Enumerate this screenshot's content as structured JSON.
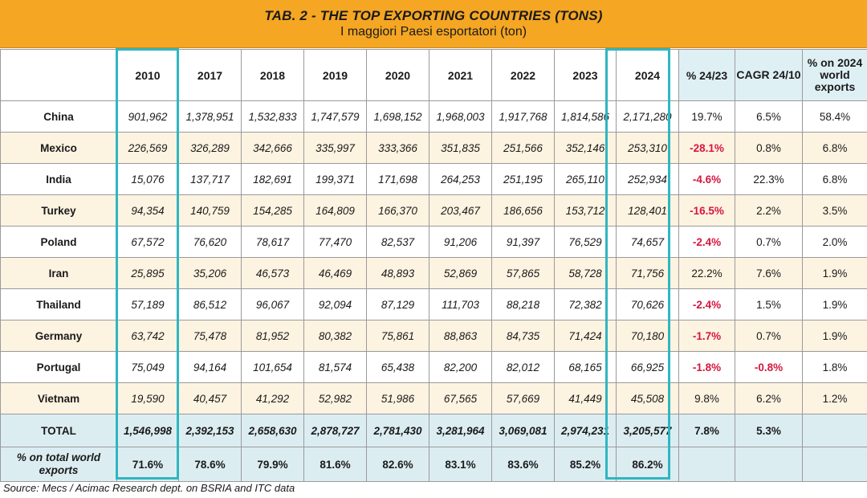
{
  "title": "TAB. 2 - THE TOP EXPORTING COUNTRIES (TONS)",
  "subtitle": "I maggiori Paesi esportatori (ton)",
  "headers": [
    "",
    "2010",
    "2017",
    "2018",
    "2019",
    "2020",
    "2021",
    "2022",
    "2023",
    "2024",
    "% 24/23",
    "CAGR 24/10",
    "% on 2024 world exports"
  ],
  "rows": [
    {
      "country": "China",
      "values": [
        "901,962",
        "1,378,951",
        "1,532,833",
        "1,747,579",
        "1,698,152",
        "1,968,003",
        "1,917,768",
        "1,814,586",
        "2,171,280"
      ],
      "pct_24_23": "19.7%",
      "cagr": "6.5%",
      "world_share": "58.4%"
    },
    {
      "country": "Mexico",
      "values": [
        "226,569",
        "326,289",
        "342,666",
        "335,997",
        "333,366",
        "351,835",
        "251,566",
        "352,146",
        "253,310"
      ],
      "pct_24_23": "-28.1%",
      "cagr": "0.8%",
      "world_share": "6.8%"
    },
    {
      "country": "India",
      "values": [
        "15,076",
        "137,717",
        "182,691",
        "199,371",
        "171,698",
        "264,253",
        "251,195",
        "265,110",
        "252,934"
      ],
      "pct_24_23": "-4.6%",
      "cagr": "22.3%",
      "world_share": "6.8%"
    },
    {
      "country": "Turkey",
      "values": [
        "94,354",
        "140,759",
        "154,285",
        "164,809",
        "166,370",
        "203,467",
        "186,656",
        "153,712",
        "128,401"
      ],
      "pct_24_23": "-16.5%",
      "cagr": "2.2%",
      "world_share": "3.5%"
    },
    {
      "country": "Poland",
      "values": [
        "67,572",
        "76,620",
        "78,617",
        "77,470",
        "82,537",
        "91,206",
        "91,397",
        "76,529",
        "74,657"
      ],
      "pct_24_23": "-2.4%",
      "cagr": "0.7%",
      "world_share": "2.0%"
    },
    {
      "country": "Iran",
      "values": [
        "25,895",
        "35,206",
        "46,573",
        "46,469",
        "48,893",
        "52,869",
        "57,865",
        "58,728",
        "71,756"
      ],
      "pct_24_23": "22.2%",
      "cagr": "7.6%",
      "world_share": "1.9%"
    },
    {
      "country": "Thailand",
      "values": [
        "57,189",
        "86,512",
        "96,067",
        "92,094",
        "87,129",
        "111,703",
        "88,218",
        "72,382",
        "70,626"
      ],
      "pct_24_23": "-2.4%",
      "cagr": "1.5%",
      "world_share": "1.9%"
    },
    {
      "country": "Germany",
      "values": [
        "63,742",
        "75,478",
        "81,952",
        "80,382",
        "75,861",
        "88,863",
        "84,735",
        "71,424",
        "70,180"
      ],
      "pct_24_23": "-1.7%",
      "cagr": "0.7%",
      "world_share": "1.9%"
    },
    {
      "country": "Portugal",
      "values": [
        "75,049",
        "94,164",
        "101,654",
        "81,574",
        "65,438",
        "82,200",
        "82,012",
        "68,165",
        "66,925"
      ],
      "pct_24_23": "-1.8%",
      "cagr": "-0.8%",
      "world_share": "1.8%"
    },
    {
      "country": "Vietnam",
      "values": [
        "19,590",
        "40,457",
        "41,292",
        "52,982",
        "51,986",
        "67,565",
        "57,669",
        "41,449",
        "45,508"
      ],
      "pct_24_23": "9.8%",
      "cagr": "6.2%",
      "world_share": "1.2%"
    }
  ],
  "total": {
    "label": "TOTAL",
    "values": [
      "1,546,998",
      "2,392,153",
      "2,658,630",
      "2,878,727",
      "2,781,430",
      "3,281,964",
      "3,069,081",
      "2,974,231",
      "3,205,577"
    ],
    "pct_24_23": "7.8%",
    "cagr": "5.3%",
    "world_share": ""
  },
  "share": {
    "label": "% on total world exports",
    "values": [
      "71.6%",
      "78.6%",
      "79.9%",
      "81.6%",
      "82.6%",
      "83.1%",
      "83.6%",
      "85.2%",
      "86.2%"
    ]
  },
  "source": "Source: Mecs / Acimac Research dept. on BSRIA and ITC data",
  "colors": {
    "title_bg": "#f5a623",
    "highlight": "#2fb6c1",
    "negative": "#d6163f",
    "total_bg": "#dcedf2",
    "alt_row": "#fdf3e1"
  }
}
